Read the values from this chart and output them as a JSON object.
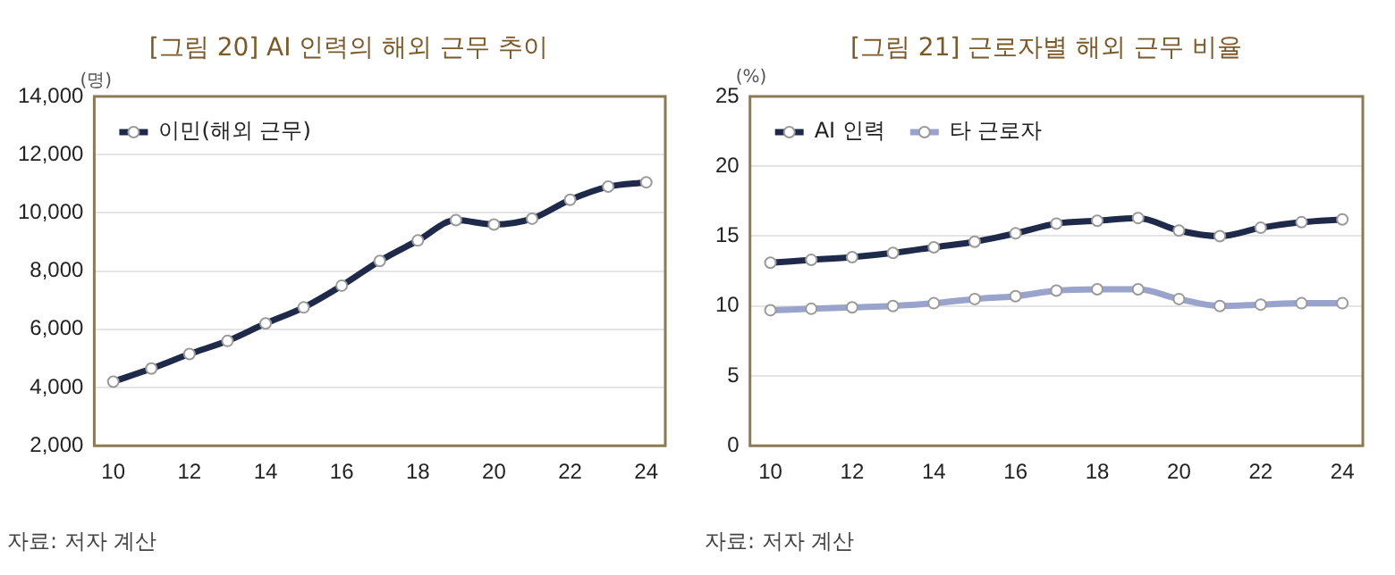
{
  "chart_data": [
    {
      "type": "line",
      "title": "[그림 20] AI 인력의 해외 근무 추이",
      "ylabel": "(명)",
      "annotations": [
        "자료: 저자 계산"
      ],
      "x": [
        10,
        11,
        12,
        13,
        14,
        15,
        16,
        17,
        18,
        19,
        20,
        21,
        22,
        23,
        24
      ],
      "series": [
        {
          "name": "이민(해외 근무)",
          "color": "#1f2a4a",
          "values": [
            4200,
            4650,
            5150,
            5600,
            6200,
            6750,
            7500,
            8350,
            9050,
            9750,
            9600,
            9800,
            10450,
            10900,
            11050
          ]
        }
      ],
      "xlim": [
        9.5,
        24.5
      ],
      "xticks": [
        10,
        12,
        14,
        16,
        18,
        20,
        22,
        24
      ],
      "ylim": [
        2000,
        14000
      ],
      "yticks": [
        {
          "value": 2000,
          "label": "2,000"
        },
        {
          "value": 4000,
          "label": "4,000"
        },
        {
          "value": 6000,
          "label": "6,000"
        },
        {
          "value": 8000,
          "label": "8,000"
        },
        {
          "value": 10000,
          "label": "10,000"
        },
        {
          "value": 12000,
          "label": "12,000"
        },
        {
          "value": 14000,
          "label": "14,000"
        }
      ],
      "grid": "y",
      "legend": "top left",
      "marker": "circle",
      "line_style": "solid"
    },
    {
      "type": "line",
      "title": "[그림 21] 근로자별 해외 근무 비율",
      "ylabel": "(%)",
      "annotations": [
        "자료: 저자 계산"
      ],
      "x": [
        10,
        11,
        12,
        13,
        14,
        15,
        16,
        17,
        18,
        19,
        20,
        21,
        22,
        23,
        24
      ],
      "series": [
        {
          "name": "AI 인력",
          "color": "#1f2a4a",
          "values": [
            13.1,
            13.3,
            13.5,
            13.8,
            14.2,
            14.6,
            15.2,
            15.9,
            16.1,
            16.3,
            15.4,
            15.0,
            15.6,
            16.0,
            16.2
          ]
        },
        {
          "name": "타 근로자",
          "color": "#9aa3cc",
          "values": [
            9.7,
            9.8,
            9.9,
            10.0,
            10.2,
            10.5,
            10.7,
            11.1,
            11.2,
            11.2,
            10.5,
            10.0,
            10.1,
            10.2,
            10.2
          ]
        }
      ],
      "xlim": [
        9.5,
        24.5
      ],
      "xticks": [
        10,
        12,
        14,
        16,
        18,
        20,
        22,
        24
      ],
      "ylim": [
        0,
        25
      ],
      "yticks": [
        0,
        5,
        10,
        15,
        20,
        25
      ],
      "grid": "y",
      "legend": "top left",
      "marker": "circle",
      "line_style": "solid"
    }
  ]
}
